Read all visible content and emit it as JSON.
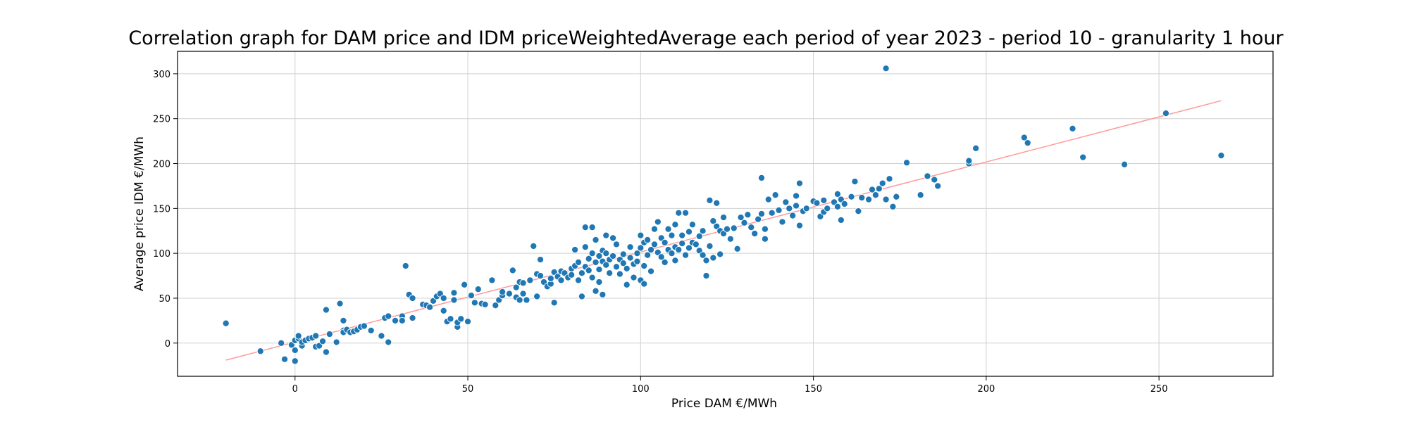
{
  "chart_data": {
    "type": "scatter",
    "title": "Correlation graph for DAM price and IDM priceWeightedAverage each period of year 2023 - period 10 - granularity 1 hour",
    "xlabel": "Price DAM €/MWh",
    "ylabel": "Average price IDM €/MWh",
    "xlim": [
      -34,
      283
    ],
    "ylim": [
      -37,
      325
    ],
    "xticks": [
      0,
      50,
      100,
      150,
      200,
      250
    ],
    "yticks": [
      0,
      50,
      100,
      150,
      200,
      250,
      300
    ],
    "grid": true,
    "marker_color": "#1f77b4",
    "fit_color": "#ff9999",
    "fit_line": {
      "x": [
        -20,
        268
      ],
      "y": [
        -19,
        270
      ]
    },
    "points": [
      [
        -20,
        22
      ],
      [
        -10,
        -9
      ],
      [
        -4,
        0
      ],
      [
        -3,
        -18
      ],
      [
        -1,
        -2
      ],
      [
        0,
        3
      ],
      [
        0,
        -8
      ],
      [
        0,
        -20
      ],
      [
        1,
        5
      ],
      [
        1,
        8
      ],
      [
        2,
        -3
      ],
      [
        2,
        1
      ],
      [
        3,
        3
      ],
      [
        4,
        5
      ],
      [
        5,
        6
      ],
      [
        6,
        8
      ],
      [
        6,
        -4
      ],
      [
        7,
        -3
      ],
      [
        8,
        2
      ],
      [
        9,
        37
      ],
      [
        9,
        -10
      ],
      [
        10,
        10
      ],
      [
        12,
        1
      ],
      [
        13,
        44
      ],
      [
        14,
        14
      ],
      [
        14,
        25
      ],
      [
        14,
        12
      ],
      [
        15,
        15
      ],
      [
        16,
        12
      ],
      [
        17,
        13
      ],
      [
        18,
        15
      ],
      [
        19,
        18
      ],
      [
        20,
        19
      ],
      [
        22,
        14
      ],
      [
        25,
        8
      ],
      [
        26,
        28
      ],
      [
        27,
        30
      ],
      [
        27,
        1
      ],
      [
        29,
        25
      ],
      [
        31,
        30
      ],
      [
        31,
        25
      ],
      [
        32,
        86
      ],
      [
        33,
        54
      ],
      [
        34,
        50
      ],
      [
        34,
        28
      ],
      [
        37,
        43
      ],
      [
        38,
        42
      ],
      [
        39,
        40
      ],
      [
        40,
        47
      ],
      [
        41,
        52
      ],
      [
        42,
        55
      ],
      [
        43,
        36
      ],
      [
        43,
        50
      ],
      [
        44,
        24
      ],
      [
        45,
        27
      ],
      [
        46,
        48
      ],
      [
        46,
        56
      ],
      [
        47,
        18
      ],
      [
        47,
        23
      ],
      [
        48,
        27
      ],
      [
        49,
        65
      ],
      [
        50,
        24
      ],
      [
        51,
        53
      ],
      [
        52,
        45
      ],
      [
        53,
        60
      ],
      [
        54,
        44
      ],
      [
        55,
        43
      ],
      [
        57,
        70
      ],
      [
        58,
        42
      ],
      [
        59,
        48
      ],
      [
        60,
        53
      ],
      [
        60,
        57
      ],
      [
        62,
        55
      ],
      [
        63,
        81
      ],
      [
        64,
        51
      ],
      [
        64,
        62
      ],
      [
        65,
        68
      ],
      [
        65,
        48
      ],
      [
        66,
        55
      ],
      [
        66,
        67
      ],
      [
        67,
        48
      ],
      [
        68,
        70
      ],
      [
        69,
        108
      ],
      [
        70,
        77
      ],
      [
        70,
        52
      ],
      [
        71,
        75
      ],
      [
        71,
        93
      ],
      [
        72,
        68
      ],
      [
        73,
        63
      ],
      [
        74,
        66
      ],
      [
        74,
        72
      ],
      [
        75,
        79
      ],
      [
        75,
        45
      ],
      [
        76,
        74
      ],
      [
        77,
        70
      ],
      [
        77,
        80
      ],
      [
        78,
        78
      ],
      [
        79,
        73
      ],
      [
        80,
        76
      ],
      [
        80,
        83
      ],
      [
        81,
        86
      ],
      [
        81,
        104
      ],
      [
        82,
        90
      ],
      [
        82,
        70
      ],
      [
        83,
        78
      ],
      [
        83,
        52
      ],
      [
        84,
        85
      ],
      [
        84,
        107
      ],
      [
        84,
        129
      ],
      [
        85,
        81
      ],
      [
        85,
        94
      ],
      [
        86,
        73
      ],
      [
        86,
        129
      ],
      [
        86,
        100
      ],
      [
        87,
        90
      ],
      [
        87,
        58
      ],
      [
        87,
        115
      ],
      [
        88,
        82
      ],
      [
        88,
        97
      ],
      [
        88,
        68
      ],
      [
        89,
        91
      ],
      [
        89,
        103
      ],
      [
        89,
        54
      ],
      [
        90,
        87
      ],
      [
        90,
        100
      ],
      [
        90,
        120
      ],
      [
        91,
        93
      ],
      [
        91,
        78
      ],
      [
        92,
        97
      ],
      [
        92,
        117
      ],
      [
        93,
        85
      ],
      [
        93,
        110
      ],
      [
        94,
        93
      ],
      [
        94,
        77
      ],
      [
        95,
        99
      ],
      [
        95,
        89
      ],
      [
        96,
        65
      ],
      [
        96,
        83
      ],
      [
        97,
        95
      ],
      [
        97,
        107
      ],
      [
        98,
        88
      ],
      [
        98,
        73
      ],
      [
        99,
        91
      ],
      [
        99,
        100
      ],
      [
        100,
        106
      ],
      [
        100,
        70
      ],
      [
        100,
        120
      ],
      [
        101,
        112
      ],
      [
        101,
        86
      ],
      [
        101,
        66
      ],
      [
        102,
        98
      ],
      [
        102,
        115
      ],
      [
        103,
        104
      ],
      [
        103,
        80
      ],
      [
        104,
        127
      ],
      [
        104,
        110
      ],
      [
        105,
        135
      ],
      [
        105,
        101
      ],
      [
        106,
        96
      ],
      [
        106,
        117
      ],
      [
        107,
        112
      ],
      [
        107,
        90
      ],
      [
        108,
        104
      ],
      [
        108,
        127
      ],
      [
        109,
        120
      ],
      [
        109,
        100
      ],
      [
        110,
        107
      ],
      [
        110,
        132
      ],
      [
        110,
        92
      ],
      [
        111,
        145
      ],
      [
        111,
        104
      ],
      [
        112,
        120
      ],
      [
        112,
        111
      ],
      [
        113,
        98
      ],
      [
        113,
        145
      ],
      [
        114,
        124
      ],
      [
        114,
        106
      ],
      [
        115,
        112
      ],
      [
        115,
        132
      ],
      [
        116,
        110
      ],
      [
        117,
        119
      ],
      [
        117,
        103
      ],
      [
        118,
        98
      ],
      [
        118,
        125
      ],
      [
        119,
        92
      ],
      [
        119,
        75
      ],
      [
        120,
        159
      ],
      [
        120,
        108
      ],
      [
        121,
        136
      ],
      [
        121,
        95
      ],
      [
        122,
        130
      ],
      [
        122,
        156
      ],
      [
        123,
        125
      ],
      [
        123,
        99
      ],
      [
        124,
        140
      ],
      [
        124,
        122
      ],
      [
        125,
        127
      ],
      [
        126,
        116
      ],
      [
        127,
        128
      ],
      [
        128,
        105
      ],
      [
        129,
        140
      ],
      [
        130,
        134
      ],
      [
        131,
        143
      ],
      [
        132,
        129
      ],
      [
        133,
        122
      ],
      [
        134,
        138
      ],
      [
        135,
        144
      ],
      [
        135,
        184
      ],
      [
        136,
        116
      ],
      [
        136,
        127
      ],
      [
        137,
        160
      ],
      [
        138,
        145
      ],
      [
        139,
        165
      ],
      [
        140,
        148
      ],
      [
        141,
        135
      ],
      [
        142,
        157
      ],
      [
        143,
        150
      ],
      [
        144,
        142
      ],
      [
        145,
        164
      ],
      [
        145,
        153
      ],
      [
        146,
        178
      ],
      [
        146,
        131
      ],
      [
        147,
        147
      ],
      [
        148,
        150
      ],
      [
        150,
        158
      ],
      [
        151,
        156
      ],
      [
        152,
        141
      ],
      [
        153,
        159
      ],
      [
        153,
        146
      ],
      [
        154,
        150
      ],
      [
        156,
        157
      ],
      [
        157,
        166
      ],
      [
        157,
        152
      ],
      [
        158,
        160
      ],
      [
        158,
        137
      ],
      [
        159,
        155
      ],
      [
        161,
        163
      ],
      [
        162,
        180
      ],
      [
        163,
        147
      ],
      [
        164,
        162
      ],
      [
        166,
        160
      ],
      [
        167,
        171
      ],
      [
        168,
        165
      ],
      [
        169,
        172
      ],
      [
        170,
        178
      ],
      [
        171,
        306
      ],
      [
        171,
        160
      ],
      [
        172,
        183
      ],
      [
        173,
        152
      ],
      [
        174,
        163
      ],
      [
        177,
        201
      ],
      [
        181,
        165
      ],
      [
        183,
        186
      ],
      [
        185,
        182
      ],
      [
        186,
        175
      ],
      [
        195,
        200
      ],
      [
        195,
        203
      ],
      [
        197,
        217
      ],
      [
        211,
        229
      ],
      [
        212,
        223
      ],
      [
        225,
        239
      ],
      [
        228,
        207
      ],
      [
        240,
        199
      ],
      [
        252,
        256
      ],
      [
        268,
        209
      ]
    ]
  }
}
